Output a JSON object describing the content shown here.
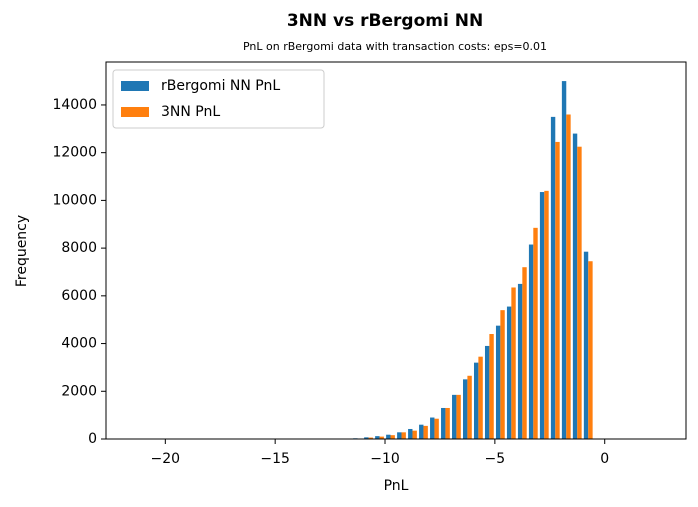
{
  "chart_data": {
    "type": "histogram",
    "title": "3NN vs rBergomi NN",
    "subtitle": "PnL on rBergomi data with transaction costs: eps=0.01",
    "xlabel": "PnL",
    "ylabel": "Frequency",
    "bins": [
      -21.5,
      -21,
      -20.5,
      -20,
      -19.5,
      -19,
      -18.5,
      -18,
      -17.5,
      -17,
      -16.5,
      -16,
      -15.5,
      -15,
      -14.5,
      -14,
      -13.5,
      -13,
      -12.5,
      -12,
      -11.5,
      -11,
      -10.5,
      -10,
      -9.5,
      -9,
      -8.5,
      -8,
      -7.5,
      -7,
      -6.5,
      -6,
      -5.5,
      -5,
      -4.5,
      -4,
      -3.5,
      -3,
      -2.5,
      -2,
      -1.5,
      -1,
      -0.5,
      0,
      0.5,
      1,
      1.5,
      2,
      2.5
    ],
    "series": [
      {
        "name": "rBergomi NN PnL",
        "color": "#1f77b4",
        "values": [
          0,
          0,
          0,
          0,
          0,
          0,
          0,
          0,
          0,
          0,
          0,
          0,
          0,
          0,
          0,
          0,
          0,
          0,
          0,
          10,
          30,
          70,
          120,
          180,
          280,
          420,
          600,
          900,
          1300,
          1850,
          2500,
          3200,
          3900,
          4750,
          5550,
          6500,
          8150,
          10350,
          13500,
          15000,
          12800,
          7850,
          0,
          0,
          0,
          0,
          0,
          0
        ]
      },
      {
        "name": "3NN PnL",
        "color": "#ff7f0e",
        "values": [
          0,
          0,
          0,
          0,
          0,
          0,
          0,
          0,
          0,
          0,
          0,
          0,
          0,
          0,
          0,
          0,
          0,
          0,
          0,
          10,
          20,
          60,
          100,
          160,
          280,
          350,
          550,
          850,
          1300,
          1850,
          2650,
          3450,
          4400,
          5400,
          6350,
          7200,
          8850,
          10400,
          12450,
          13600,
          12250,
          7450,
          0,
          0,
          0,
          0,
          0,
          0
        ]
      }
    ],
    "xlim": [
      -22.7,
      3.7
    ],
    "xticks": [
      {
        "value": -20,
        "label": "−20"
      },
      {
        "value": -15,
        "label": "−15"
      },
      {
        "value": -10,
        "label": "−10"
      },
      {
        "value": -5,
        "label": "−5"
      },
      0
    ],
    "ylim": [
      0,
      15800
    ],
    "yticks": [
      0,
      2000,
      4000,
      6000,
      8000,
      10000,
      12000,
      14000
    ],
    "legend": "upper left"
  }
}
